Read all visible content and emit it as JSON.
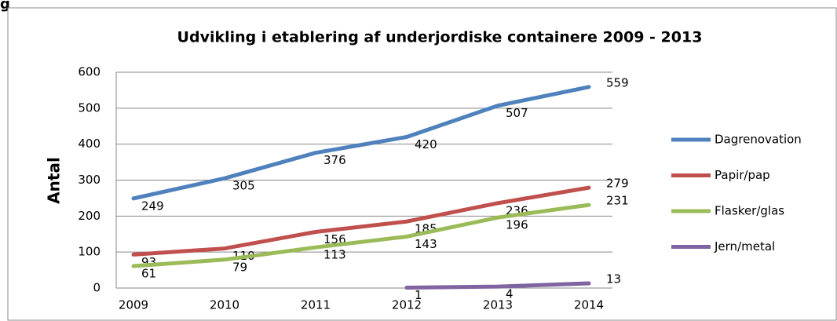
{
  "caption": "g",
  "chart_data": {
    "type": "line",
    "title": "Udvikling i etablering af underjordiske containere 2009 - 2013",
    "y_label": "Antal",
    "categories": [
      "2009",
      "2010",
      "2011",
      "2012",
      "2013",
      "2014"
    ],
    "series": [
      {
        "name": "Dagrenovation",
        "color": "#4f81bd",
        "values": [
          249,
          305,
          376,
          420,
          507,
          559
        ]
      },
      {
        "name": "Papir/pap",
        "color": "#c0504d",
        "values": [
          93,
          110,
          156,
          185,
          236,
          279
        ]
      },
      {
        "name": "Flasker/glas",
        "color": "#9bbb59",
        "values": [
          61,
          79,
          113,
          143,
          196,
          231
        ]
      },
      {
        "name": "Jern/metal",
        "color": "#8064a2",
        "values": [
          null,
          null,
          null,
          1,
          4,
          13
        ]
      }
    ],
    "ylim": [
      0,
      600
    ],
    "yticks": [
      0,
      100,
      200,
      300,
      400,
      500,
      600
    ],
    "grid": true,
    "legend": "right"
  }
}
